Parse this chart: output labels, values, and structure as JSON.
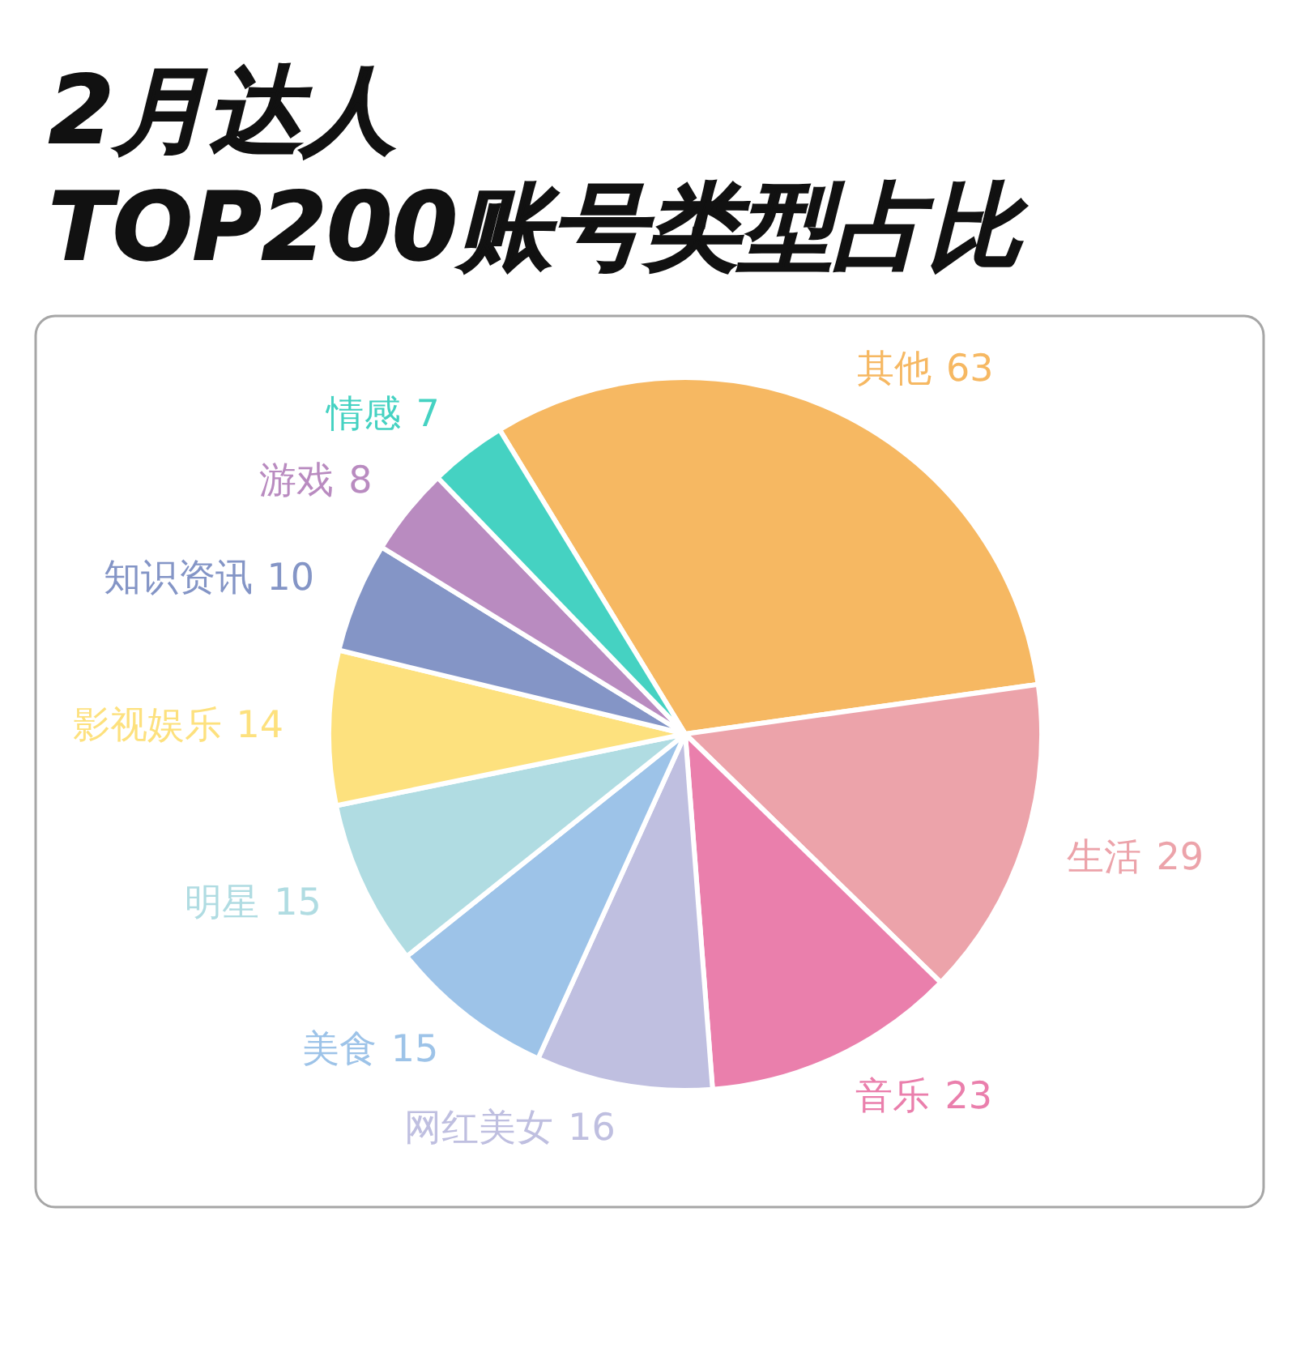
{
  "chart_data": {
    "type": "pie",
    "title": "2月达人\nTOP200账号类型占比",
    "categories": [
      "其他",
      "生活",
      "音乐",
      "网红美女",
      "美食",
      "明星",
      "影视娱乐",
      "知识资讯",
      "游戏",
      "情感"
    ],
    "values": [
      63,
      29,
      23,
      16,
      15,
      15,
      14,
      10,
      8,
      7
    ],
    "colors": [
      "#f6b862",
      "#eca3aa",
      "#ea7fac",
      "#bfbfe0",
      "#9dc3e8",
      "#b0dce2",
      "#fde17e",
      "#8495c6",
      "#b98bc0",
      "#45d2c2"
    ],
    "data_labels": true
  }
}
